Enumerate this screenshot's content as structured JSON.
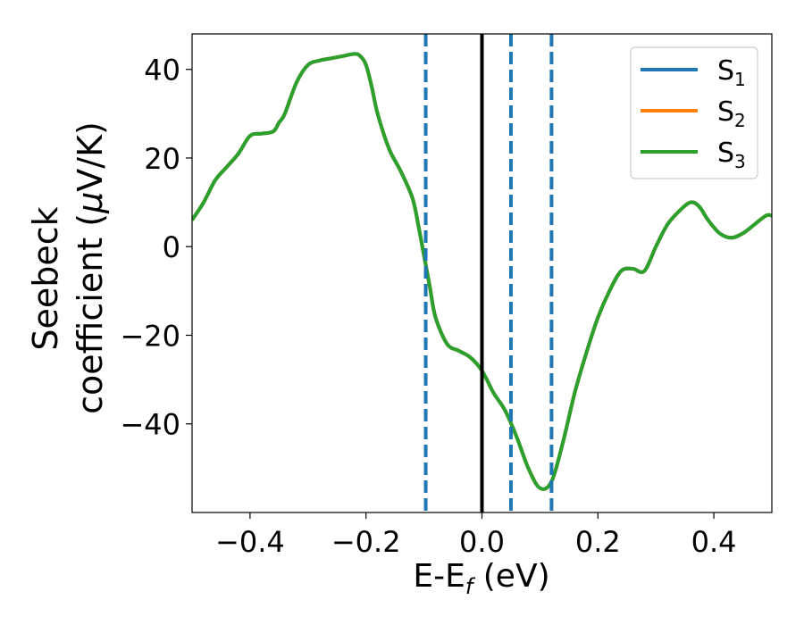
{
  "chart_data": {
    "type": "line",
    "xlabel_main": "E-E",
    "xlabel_sub": "f",
    "xlabel_tail": " (eV)",
    "ylabel_line1": "Seebeck",
    "ylabel_line2_prefix": "coefficient  (",
    "ylabel_line2_mu": "μ",
    "ylabel_line2_suffix": "V/K)",
    "xlim": [
      -0.5,
      0.5
    ],
    "ylim": [
      -60,
      48
    ],
    "xticks": [
      -0.4,
      -0.2,
      0.0,
      0.2,
      0.4
    ],
    "xtick_labels": [
      "−0.4",
      "−0.2",
      "0.0",
      "0.2",
      "0.4"
    ],
    "yticks": [
      -40,
      -20,
      0,
      20,
      40
    ],
    "ytick_labels": [
      "−40",
      "−20",
      "0",
      "20",
      "40"
    ],
    "grid": false,
    "legend_position": "top-right",
    "vlines": [
      {
        "x": 0.0,
        "style": "solid",
        "color": "#000000"
      },
      {
        "x": -0.097,
        "style": "dashed",
        "color": "#1f77b4"
      },
      {
        "x": 0.05,
        "style": "dashed",
        "color": "#1f77b4"
      },
      {
        "x": 0.12,
        "style": "dashed",
        "color": "#1f77b4"
      }
    ],
    "x": [
      -0.5,
      -0.48,
      -0.46,
      -0.44,
      -0.42,
      -0.4,
      -0.38,
      -0.36,
      -0.35,
      -0.34,
      -0.32,
      -0.3,
      -0.28,
      -0.26,
      -0.24,
      -0.22,
      -0.21,
      -0.2,
      -0.19,
      -0.18,
      -0.16,
      -0.14,
      -0.12,
      -0.11,
      -0.1,
      -0.09,
      -0.08,
      -0.06,
      -0.04,
      -0.02,
      0.0,
      0.02,
      0.04,
      0.06,
      0.08,
      0.1,
      0.12,
      0.14,
      0.16,
      0.18,
      0.2,
      0.22,
      0.24,
      0.26,
      0.28,
      0.3,
      0.32,
      0.34,
      0.36,
      0.375,
      0.39,
      0.41,
      0.43,
      0.45,
      0.47,
      0.49,
      0.5
    ],
    "series": [
      {
        "name": "S1",
        "color": "#1f77b4",
        "values": [
          6,
          10,
          15,
          18,
          21,
          25,
          25.5,
          26,
          28,
          30,
          37,
          41,
          42,
          42.5,
          43,
          43.5,
          43,
          41,
          36,
          30,
          22,
          17,
          11,
          5,
          -2,
          -9,
          -16,
          -22,
          -23.5,
          -25,
          -28,
          -33,
          -37,
          -43,
          -50,
          -54.5,
          -53,
          -44,
          -33,
          -24,
          -16,
          -10,
          -5.5,
          -5,
          -5.5,
          0,
          5,
          8,
          10,
          9,
          6,
          3,
          2,
          3,
          5,
          7,
          7
        ]
      },
      {
        "name": "S2",
        "color": "#ff7f0e",
        "values": [
          6,
          10,
          15,
          18,
          21,
          25,
          25.5,
          26,
          28,
          30,
          37,
          41,
          42,
          42.5,
          43,
          43.5,
          43,
          41,
          36,
          30,
          22,
          17,
          11,
          5,
          -2,
          -9,
          -16,
          -22,
          -23.5,
          -25,
          -28,
          -33,
          -37,
          -43,
          -50,
          -54.5,
          -53,
          -44,
          -33,
          -24,
          -16,
          -10,
          -5.5,
          -5,
          -5.5,
          0,
          5,
          8,
          10,
          9,
          6,
          3,
          2,
          3,
          5,
          7,
          7
        ]
      },
      {
        "name": "S3",
        "color": "#2ca02c",
        "values": [
          6,
          10,
          15,
          18,
          21,
          25,
          25.5,
          26,
          28,
          30,
          37,
          41,
          42,
          42.5,
          43,
          43.5,
          43,
          41,
          36,
          30,
          22,
          17,
          11,
          5,
          -2,
          -9,
          -16,
          -22,
          -23.5,
          -25,
          -28,
          -33,
          -37,
          -43,
          -50,
          -54.5,
          -53,
          -44,
          -33,
          -24,
          -16,
          -10,
          -5.5,
          -5,
          -5.5,
          0,
          5,
          8,
          10,
          9,
          6,
          3,
          2,
          3,
          5,
          7,
          7
        ]
      }
    ],
    "legend": [
      {
        "label": "S",
        "sub": "1",
        "color": "#1f77b4"
      },
      {
        "label": "S",
        "sub": "2",
        "color": "#ff7f0e"
      },
      {
        "label": "S",
        "sub": "3",
        "color": "#2ca02c"
      }
    ]
  }
}
